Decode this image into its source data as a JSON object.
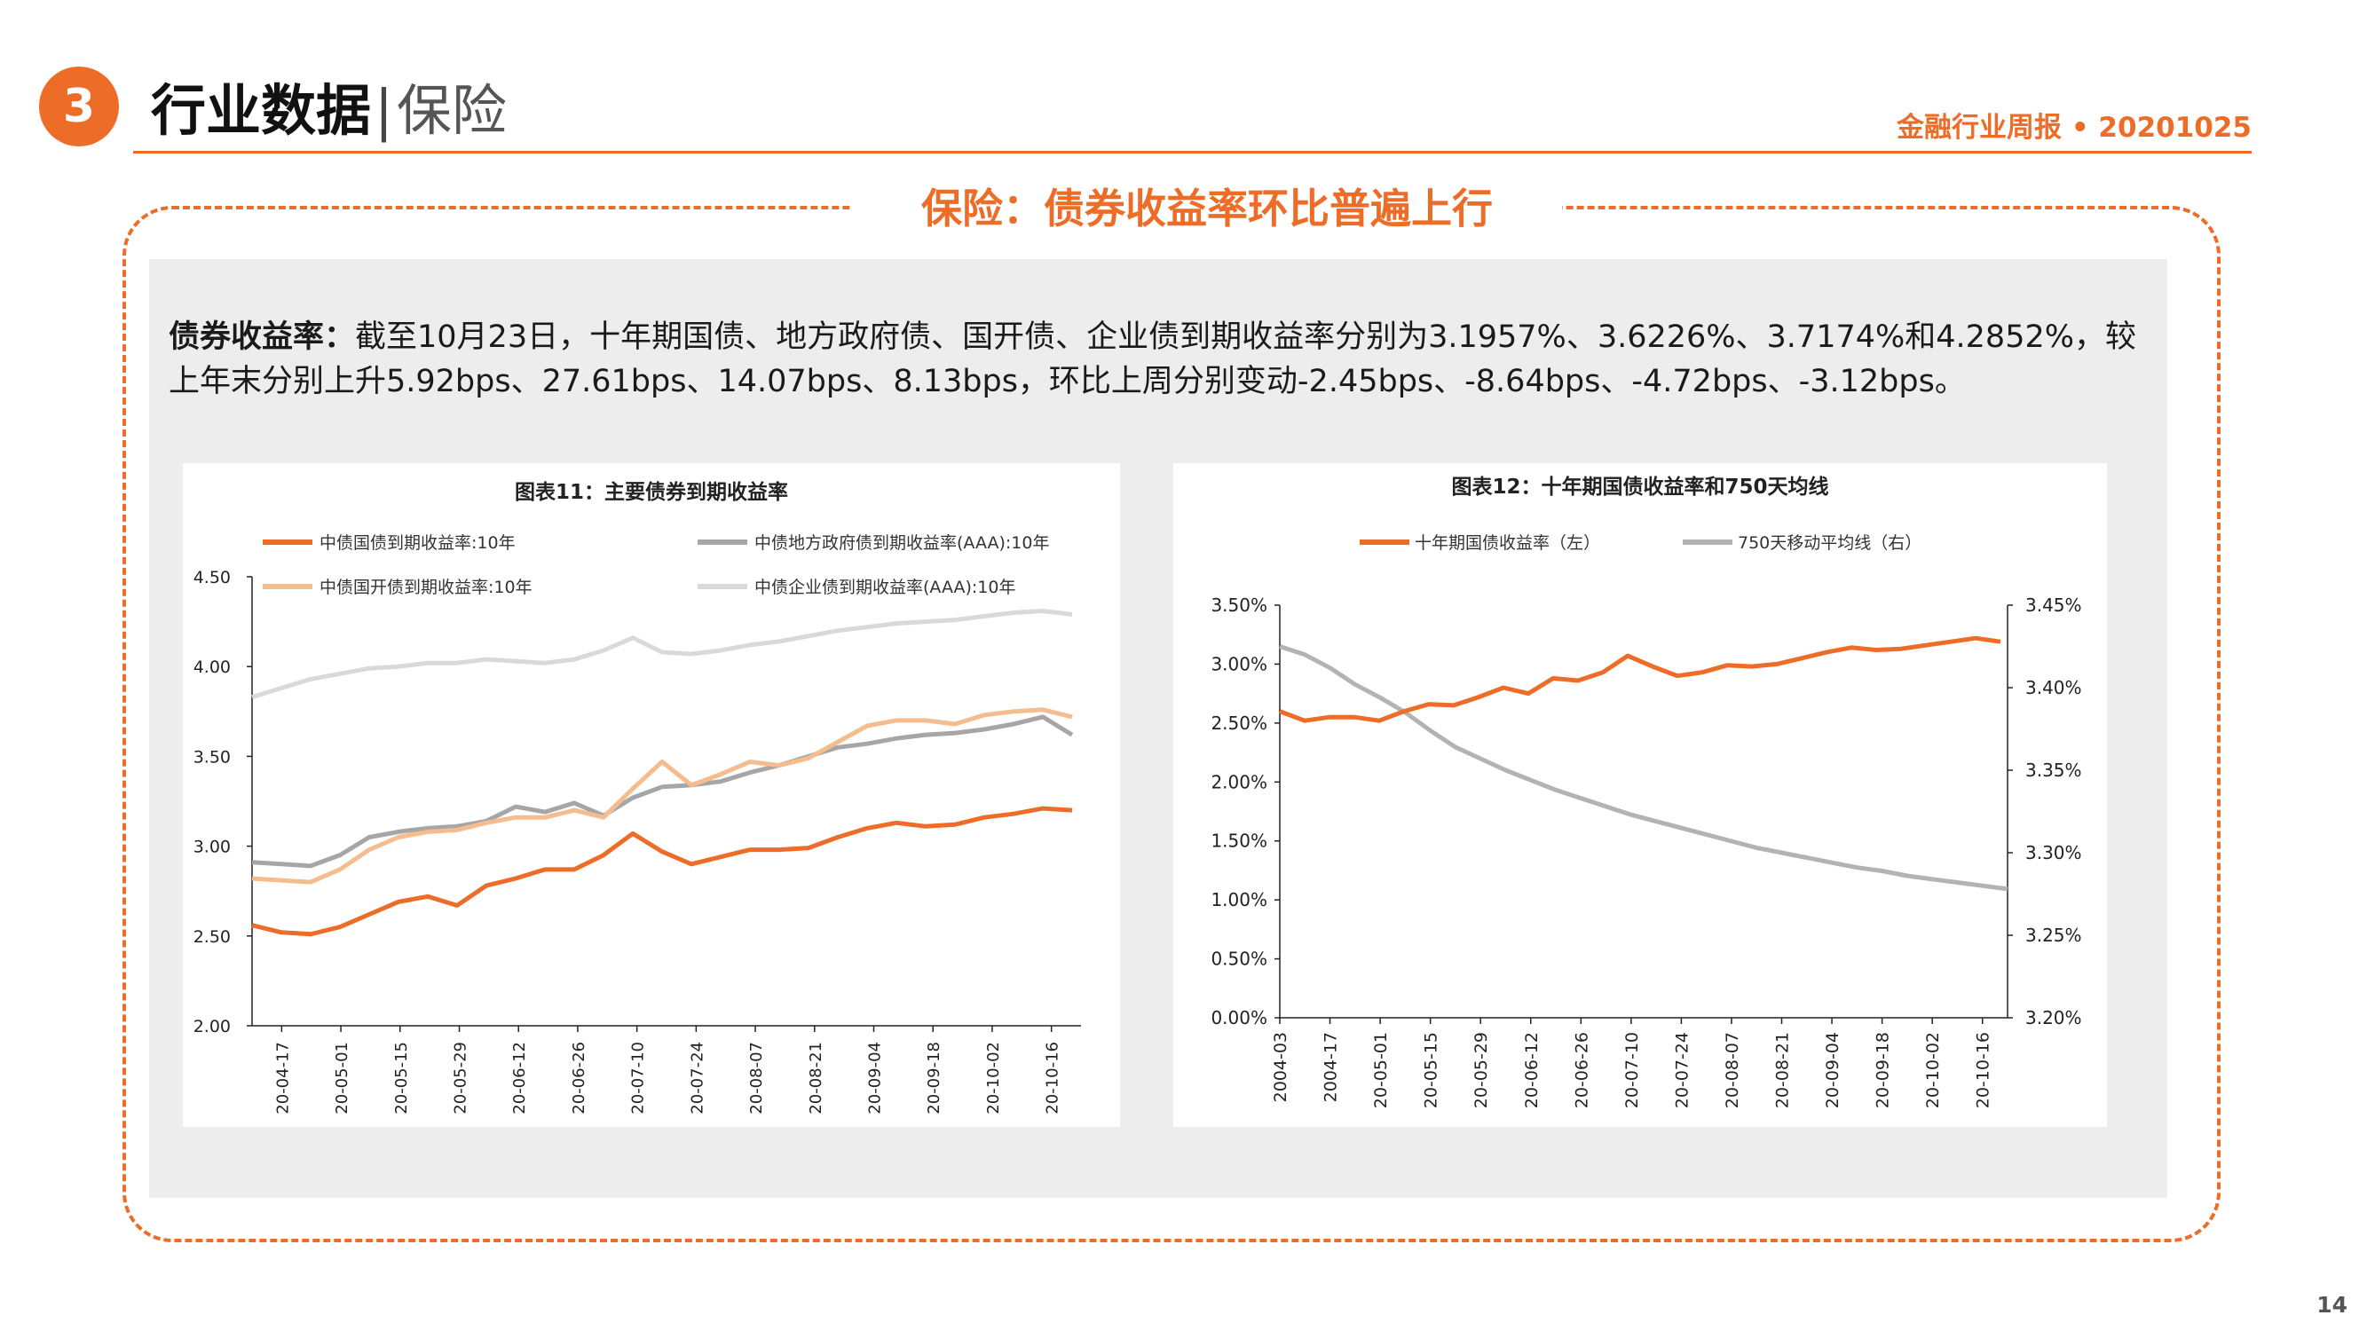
{
  "header": {
    "section_number": "3",
    "title": "行业数据",
    "separator": "|",
    "subtitle": "保险",
    "report_tag": "金融行业周报 • 20201025"
  },
  "frame_title": "保险：债券收益率环比普遍上行",
  "summary": {
    "lead": "债券收益率：",
    "text": "截至10月23日，十年期国债、地方政府债、国开债、企业债到期收益率分别为3.1957%、3.6226%、3.7174%和4.2852%，较上年末分别上升5.92bps、27.61bps、14.07bps、8.13bps，环比上周分别变动-2.45bps、-8.64bps、-4.72bps、-3.12bps。"
  },
  "colors": {
    "accent": "#ed6d28",
    "gray_dark": "#a6a6a6",
    "peach": "#f5bc8e",
    "gray_light": "#d9d9d9"
  },
  "chart_data": [
    {
      "type": "line",
      "title": "图表11：主要债券到期收益率",
      "ylim": [
        2.0,
        4.5
      ],
      "yticks": [
        "4.50",
        "4.00",
        "3.50",
        "3.00",
        "2.50",
        "2.00"
      ],
      "xticks": [
        "20-04-17",
        "20-05-01",
        "20-05-15",
        "20-05-29",
        "20-06-12",
        "20-06-26",
        "20-07-10",
        "20-07-24",
        "20-08-07",
        "20-08-21",
        "20-09-04",
        "20-09-18",
        "20-10-02",
        "20-10-16"
      ],
      "x": [
        "04-10",
        "04-17",
        "04-24",
        "05-01",
        "05-08",
        "05-15",
        "05-22",
        "05-29",
        "06-05",
        "06-12",
        "06-19",
        "06-26",
        "07-03",
        "07-10",
        "07-17",
        "07-24",
        "07-31",
        "08-07",
        "08-14",
        "08-21",
        "08-28",
        "09-04",
        "09-11",
        "09-18",
        "09-25",
        "10-02",
        "10-09",
        "10-16",
        "10-23"
      ],
      "legend_position": "top",
      "grid": false,
      "series": [
        {
          "name": "中债国债到期收益率:10年",
          "color": "#ed6d28",
          "values": [
            2.56,
            2.52,
            2.51,
            2.55,
            2.62,
            2.69,
            2.72,
            2.67,
            2.78,
            2.82,
            2.87,
            2.87,
            2.95,
            3.07,
            2.97,
            2.9,
            2.94,
            2.98,
            2.98,
            2.99,
            3.05,
            3.1,
            3.13,
            3.11,
            3.12,
            3.16,
            3.18,
            3.21,
            3.2
          ]
        },
        {
          "name": "中债地方政府债到期收益率(AAA):10年",
          "color": "#a6a6a6",
          "values": [
            2.91,
            2.9,
            2.89,
            2.95,
            3.05,
            3.08,
            3.1,
            3.11,
            3.14,
            3.22,
            3.19,
            3.24,
            3.17,
            3.27,
            3.33,
            3.34,
            3.36,
            3.41,
            3.45,
            3.5,
            3.55,
            3.57,
            3.6,
            3.62,
            3.63,
            3.65,
            3.68,
            3.72,
            3.62
          ]
        },
        {
          "name": "中债国开债到期收益率:10年",
          "color": "#f5bc8e",
          "values": [
            2.82,
            2.81,
            2.8,
            2.87,
            2.98,
            3.05,
            3.08,
            3.09,
            3.13,
            3.16,
            3.16,
            3.2,
            3.16,
            3.32,
            3.47,
            3.34,
            3.4,
            3.47,
            3.45,
            3.49,
            3.58,
            3.67,
            3.7,
            3.7,
            3.68,
            3.73,
            3.75,
            3.76,
            3.72
          ]
        },
        {
          "name": "中债企业债到期收益率(AAA):10年",
          "color": "#d9d9d9",
          "values": [
            3.83,
            3.88,
            3.93,
            3.96,
            3.99,
            4.0,
            4.02,
            4.02,
            4.04,
            4.03,
            4.02,
            4.04,
            4.09,
            4.16,
            4.08,
            4.07,
            4.09,
            4.12,
            4.14,
            4.17,
            4.2,
            4.22,
            4.24,
            4.25,
            4.26,
            4.28,
            4.3,
            4.31,
            4.29
          ]
        }
      ]
    },
    {
      "type": "line",
      "title": "图表12：十年期国债收益率和750天均线",
      "xticks": [
        "2004-03",
        "2004-17",
        "20-05-01",
        "20-05-15",
        "20-05-29",
        "20-06-12",
        "20-06-26",
        "20-07-10",
        "20-07-24",
        "20-08-07",
        "20-08-21",
        "20-09-04",
        "20-09-18",
        "20-10-02",
        "20-10-16"
      ],
      "yticks_left": [
        "3.50%",
        "3.00%",
        "2.50%",
        "2.00%",
        "1.50%",
        "1.00%",
        "0.50%",
        "0.00%"
      ],
      "yticks_right": [
        "3.45%",
        "3.40%",
        "3.35%",
        "3.30%",
        "3.25%",
        "3.20%"
      ],
      "ylim_left": [
        0,
        3.5
      ],
      "ylim_right": [
        3.2,
        3.45
      ],
      "x": [
        "04-03",
        "04-10",
        "04-17",
        "04-24",
        "05-01",
        "05-08",
        "05-15",
        "05-22",
        "05-29",
        "06-05",
        "06-12",
        "06-19",
        "06-26",
        "07-03",
        "07-10",
        "07-17",
        "07-24",
        "07-31",
        "08-07",
        "08-14",
        "08-21",
        "08-28",
        "09-04",
        "09-11",
        "09-18",
        "09-25",
        "10-02",
        "10-09",
        "10-16",
        "10-23"
      ],
      "legend_position": "top",
      "grid": false,
      "series": [
        {
          "name": "十年期国债收益率（左）",
          "axis": "left",
          "color": "#ed6d28",
          "values": [
            2.6,
            2.52,
            2.55,
            2.55,
            2.52,
            2.6,
            2.66,
            2.65,
            2.72,
            2.8,
            2.75,
            2.88,
            2.86,
            2.93,
            3.07,
            2.98,
            2.9,
            2.93,
            2.99,
            2.98,
            3.0,
            3.05,
            3.1,
            3.14,
            3.12,
            3.13,
            3.16,
            3.19,
            3.22,
            3.19
          ]
        },
        {
          "name": "750天移动平均线（右）",
          "axis": "right",
          "color": "#b3b3b3",
          "values": [
            3.425,
            3.42,
            3.412,
            3.402,
            3.394,
            3.385,
            3.374,
            3.364,
            3.357,
            3.35,
            3.344,
            3.338,
            3.333,
            3.328,
            3.323,
            3.319,
            3.315,
            3.311,
            3.307,
            3.303,
            3.3,
            3.297,
            3.294,
            3.291,
            3.289,
            3.286,
            3.284,
            3.282,
            3.28,
            3.278
          ]
        }
      ]
    }
  ],
  "page_number": "14"
}
